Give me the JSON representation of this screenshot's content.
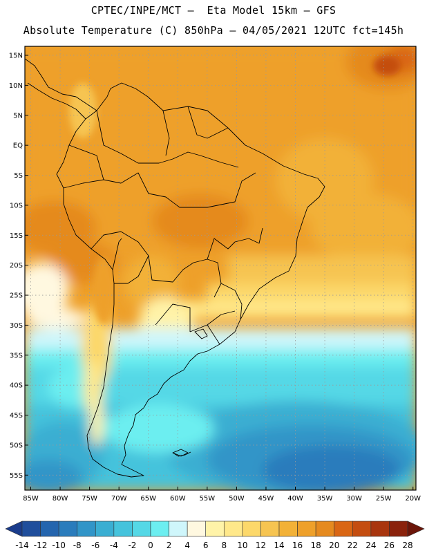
{
  "header": {
    "line1": "CPTEC/INPE/MCT –  Eta Model 15km – GFS",
    "line2": "Absolute Temperature (C) 850hPa – 04/05/2021 12UTC fct=145h"
  },
  "map": {
    "lat_labels": [
      "15N",
      "10N",
      "5N",
      "EQ",
      "5S",
      "10S",
      "15S",
      "20S",
      "25S",
      "30S",
      "35S",
      "40S",
      "45S",
      "50S",
      "55S"
    ],
    "lon_labels": [
      "85W",
      "80W",
      "75W",
      "70W",
      "65W",
      "60W",
      "55W",
      "50W",
      "45W",
      "40W",
      "35W",
      "30W",
      "25W",
      "20W"
    ],
    "lat_values": [
      15,
      10,
      5,
      0,
      -5,
      -10,
      -15,
      -20,
      -25,
      -30,
      -35,
      -40,
      -45,
      -50,
      -55
    ],
    "lon_values": [
      -85,
      -80,
      -75,
      -70,
      -65,
      -60,
      -55,
      -50,
      -45,
      -40,
      -35,
      -30,
      -25,
      -20
    ],
    "extent": {
      "lon_min": -86,
      "lon_max": -19.5,
      "lat_min": -57.5,
      "lat_max": 16.5
    },
    "units": "°C"
  },
  "colorbar": {
    "labels": [
      "-14",
      "-12",
      "-10",
      "-8",
      "-6",
      "-4",
      "-2",
      "0",
      "2",
      "4",
      "6",
      "8",
      "10",
      "12",
      "14",
      "16",
      "18",
      "20",
      "22",
      "24",
      "26",
      "28"
    ],
    "colors": [
      "#1a3c8c",
      "#1f4e9c",
      "#2465ae",
      "#2a7cbc",
      "#3195c8",
      "#3aaed2",
      "#45c3dc",
      "#55d8e6",
      "#6ceef0",
      "#cff6fb",
      "#fff8e0",
      "#fff3a8",
      "#ffe88a",
      "#fcd86a",
      "#f6c451",
      "#f2b137",
      "#eea02a",
      "#e58a1f",
      "#d96614",
      "#c44d10",
      "#a8350e",
      "#8a220c",
      "#6b1509"
    ]
  }
}
